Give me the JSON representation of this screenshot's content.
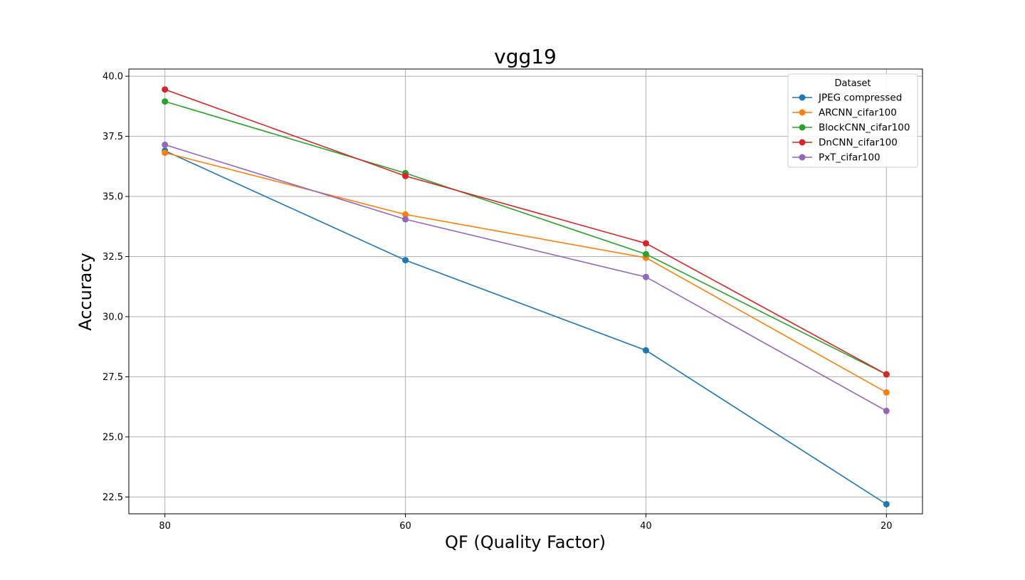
{
  "chart_data": {
    "type": "line",
    "title": "vgg19",
    "xlabel": "QF (Quality Factor)",
    "ylabel": "Accuracy",
    "x": [
      80,
      60,
      40,
      20
    ],
    "x_tick_labels": [
      "80",
      "60",
      "40",
      "20"
    ],
    "x_reversed": true,
    "xlim": [
      83,
      17
    ],
    "ylim": [
      21.8,
      40.3
    ],
    "y_ticks": [
      22.5,
      25.0,
      27.5,
      30.0,
      32.5,
      35.0,
      37.5,
      40.0
    ],
    "y_tick_labels": [
      "22.5",
      "25.0",
      "27.5",
      "30.0",
      "32.5",
      "35.0",
      "37.5",
      "40.0"
    ],
    "grid": true,
    "legend": {
      "title": "Dataset",
      "placement": "top-right"
    },
    "series": [
      {
        "name": "JPEG compressed",
        "color": "#1f77b4",
        "values": [
          36.9,
          32.35,
          28.6,
          22.2
        ]
      },
      {
        "name": "ARCNN_cifar100",
        "color": "#ff7f0e",
        "values": [
          36.82,
          34.25,
          32.45,
          26.85
        ]
      },
      {
        "name": "BlockCNN_cifar100",
        "color": "#2ca02c",
        "values": [
          38.95,
          35.97,
          32.6,
          27.6
        ]
      },
      {
        "name": "DnCNN_cifar100",
        "color": "#d62728",
        "values": [
          39.45,
          35.85,
          33.05,
          27.6
        ]
      },
      {
        "name": "PxT_cifar100",
        "color": "#9467bd",
        "values": [
          37.15,
          34.05,
          31.65,
          26.08
        ]
      }
    ]
  }
}
